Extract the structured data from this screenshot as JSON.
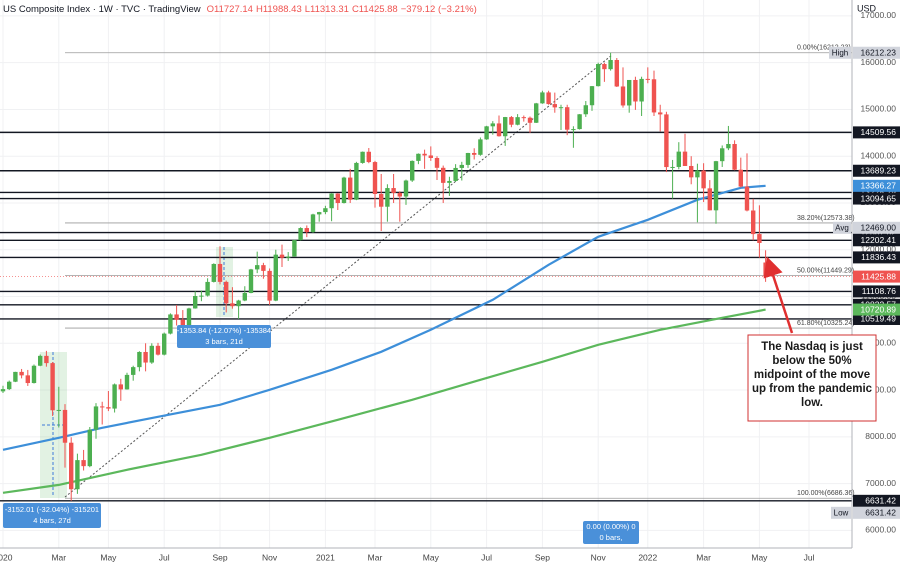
{
  "chart_data": {
    "type": "candlestick",
    "header": {
      "title": "US Composite Index · 1W · TVC · TradingView",
      "open": "O11727.14",
      "high": "H11988.43",
      "low": "L11313.31",
      "close": "C11425.88",
      "change": "−379.12 (−3.21%)"
    },
    "currency": "USD",
    "up_color": "#4caf50",
    "down_color": "#ef5350",
    "level_color": "#131722",
    "tag_gray": "#d1d4dc",
    "ylim": [
      5580,
      17340
    ],
    "yticks": [
      {
        "value": 6000,
        "label": "6000.00"
      },
      {
        "value": 7000,
        "label": "7000.00"
      },
      {
        "value": 8000,
        "label": "8000.00"
      },
      {
        "value": 9000,
        "label": "9000.00"
      },
      {
        "value": 10000,
        "label": "10000.00"
      },
      {
        "value": 11000,
        "label": "11000.00"
      },
      {
        "value": 12000,
        "label": "12000.00"
      },
      {
        "value": 13000,
        "label": "13000.00"
      },
      {
        "value": 14000,
        "label": "14000.00"
      },
      {
        "value": 15000,
        "label": "15000.00"
      },
      {
        "value": 16000,
        "label": "16000.00"
      },
      {
        "value": 17000,
        "label": "17000.00"
      }
    ],
    "grid": true,
    "categories": [
      "2020",
      null,
      null,
      null,
      null,
      null,
      null,
      null,
      null,
      "Mar",
      null,
      null,
      null,
      null,
      null,
      null,
      null,
      "May",
      null,
      null,
      null,
      null,
      null,
      null,
      null,
      null,
      "Jul",
      null,
      null,
      null,
      null,
      null,
      null,
      null,
      null,
      "Sep",
      null,
      null,
      null,
      null,
      null,
      null,
      null,
      "Nov",
      null,
      null,
      null,
      null,
      null,
      null,
      null,
      null,
      "2021",
      null,
      null,
      null,
      null,
      null,
      null,
      null,
      "Mar",
      null,
      null,
      null,
      null,
      null,
      null,
      null,
      null,
      "May",
      null,
      null,
      null,
      null,
      null,
      null,
      null,
      null,
      "Jul",
      null,
      null,
      null,
      null,
      null,
      null,
      null,
      null,
      "Sep",
      null,
      null,
      null,
      null,
      null,
      null,
      null,
      null,
      "Nov",
      null,
      null,
      null,
      null,
      null,
      null,
      null,
      "2022",
      null,
      null,
      null,
      null,
      null,
      null,
      null,
      null,
      "Mar",
      null,
      null,
      null,
      null,
      null,
      null,
      null,
      null,
      "May",
      null,
      null,
      null,
      null,
      null,
      null,
      null,
      "Jul",
      null,
      null,
      null,
      null,
      null,
      null
    ],
    "open": [
      8972,
      9020,
      9178,
      9388,
      9314,
      9150,
      9520,
      9731,
      9576,
      8567,
      8575,
      7874,
      6879,
      7502,
      7373,
      8153,
      8650,
      8634,
      8604,
      9121,
      9014,
      9324,
      9490,
      9814,
      9588,
      9946,
      9757,
      10207,
      10617,
      10503,
      10363,
      10745,
      11011,
      11019,
      11312,
      11696,
      11313,
      10854,
      10793,
      10914,
      11075,
      11580,
      11671,
      11548,
      10912,
      11895,
      11829,
      11855,
      12206,
      12464,
      12378,
      12756,
      12805,
      12888,
      13202,
      12999,
      13543,
      13070,
      13856,
      14095,
      13875,
      13192,
      12920,
      13319,
      13215,
      13138,
      13480,
      13900,
      14052,
      14016,
      13962,
      13752,
      13430,
      13471,
      13749,
      13814,
      14069,
      14030,
      14360,
      14639,
      14701,
      14427,
      14837,
      14673,
      14835,
      14823,
      14715,
      15130,
      15364,
      15115,
      15044,
      15048,
      14567,
      14580,
      14897,
      15090,
      15498,
      15971,
      15861,
      16057,
      15491,
      15085,
      15630,
      15170,
      15653,
      15645,
      14936,
      14894,
      13768,
      13770,
      14098,
      13791,
      13548,
      13694,
      13313,
      12843,
      13894,
      14169,
      14261,
      13711,
      13351,
      12839,
      12335,
      11727.14,
      null,
      null,
      null,
      null,
      null,
      null,
      null,
      null,
      null,
      null,
      null,
      null,
      null
    ],
    "high": [
      9093,
      9203,
      9390,
      9451,
      9430,
      9545,
      9760,
      9838,
      9600,
      9070,
      8700,
      7990,
      7640,
      7720,
      8210,
      8720,
      8750,
      8980,
      9140,
      9240,
      9370,
      9520,
      9830,
      10000,
      10000,
      10010,
      10230,
      10640,
      10820,
      10710,
      10760,
      11110,
      11130,
      11390,
      11710,
      12074,
      11340,
      11200,
      10930,
      11220,
      11590,
      11960,
      11720,
      11600,
      12000,
      12110,
      11950,
      12210,
      12480,
      12520,
      12770,
      12810,
      12940,
      13210,
      13210,
      13560,
      13730,
      13880,
      14100,
      14175,
      13900,
      13620,
      13400,
      13620,
      13250,
      13500,
      13910,
      14060,
      14140,
      14210,
      14000,
      13800,
      13560,
      13830,
      13880,
      14070,
      14170,
      14400,
      14650,
      14750,
      14870,
      14840,
      14860,
      14900,
      14870,
      14850,
      15140,
      15400,
      15400,
      15360,
      15100,
      15100,
      14640,
      14900,
      15180,
      15500,
      16000,
      16000,
      16212.23,
      16100,
      15900,
      15630,
      15700,
      15700,
      15900,
      15830,
      15100,
      14950,
      13920,
      14300,
      14480,
      14000,
      13840,
      13850,
      13490,
      13900,
      14230,
      14647,
      14340,
      13970,
      14060,
      13090,
      12950,
      11988.43,
      null,
      null,
      null,
      null,
      null,
      null,
      null,
      null,
      null,
      null,
      null,
      null,
      null
    ],
    "low": [
      8937,
      9000,
      9170,
      9250,
      9088,
      9140,
      9510,
      9500,
      8446,
      8200,
      7340,
      6631.42,
      6780,
      7280,
      7350,
      7960,
      8263,
      8550,
      8520,
      8770,
      9010,
      9200,
      9400,
      9400,
      9560,
      9740,
      9740,
      10190,
      10380,
      10320,
      10140,
      10740,
      10900,
      11000,
      11300,
      11260,
      10660,
      10740,
      10520,
      10900,
      11070,
      11500,
      11380,
      10820,
      10900,
      11630,
      11760,
      11850,
      12200,
      12270,
      12360,
      12600,
      12760,
      12610,
      12850,
      12990,
      13000,
      13060,
      13840,
      13850,
      12900,
      12400,
      12600,
      13000,
      12600,
      12960,
      13450,
      13830,
      13730,
      13900,
      13490,
      13000,
      13150,
      13450,
      13480,
      13750,
      13930,
      14010,
      14350,
      14460,
      14420,
      14220,
      14620,
      14660,
      14740,
      14500,
      14710,
      15120,
      15100,
      14930,
      14560,
      14450,
      14180,
      14570,
      14840,
      14970,
      15490,
      15590,
      15830,
      15480,
      15040,
      14930,
      14990,
      14860,
      15560,
      14860,
      14530,
      13660,
      13094,
      13720,
      13790,
      13400,
      12587,
      13020,
      12840,
      12555,
      13770,
      14130,
      13700,
      13330,
      12820,
      12200,
      11830,
      11313.31,
      null,
      null,
      null,
      null,
      null,
      null,
      null,
      null,
      null,
      null,
      null,
      null,
      null
    ],
    "close": [
      9020,
      9178,
      9388,
      9314,
      9150,
      9520,
      9731,
      9576,
      8567,
      8575,
      7874,
      6879,
      7502,
      7373,
      8153,
      8650,
      8634,
      8604,
      9121,
      9014,
      9324,
      9490,
      9814,
      9588,
      9946,
      9757,
      10207,
      10617,
      10503,
      10363,
      10745,
      11011,
      11019,
      11312,
      11696,
      11313,
      10854,
      10793,
      10914,
      11075,
      11580,
      11671,
      11548,
      10912,
      11895,
      11829,
      11855,
      12206,
      12464,
      12378,
      12756,
      12805,
      12888,
      13202,
      12999,
      13543,
      13070,
      13856,
      14095,
      13875,
      13192,
      12920,
      13319,
      13215,
      13138,
      13480,
      13900,
      14052,
      14016,
      13962,
      13752,
      13430,
      13471,
      13749,
      13814,
      14069,
      14030,
      14360,
      14639,
      14701,
      14427,
      14837,
      14673,
      14835,
      14823,
      14715,
      15130,
      15364,
      15115,
      15044,
      15048,
      14567,
      14580,
      14897,
      15090,
      15498,
      15971,
      15861,
      16057,
      15491,
      15085,
      15630,
      15170,
      15653,
      15645,
      14936,
      14894,
      13768,
      13770,
      14098,
      13791,
      13548,
      13694,
      13313,
      12843,
      13894,
      14169,
      14261,
      13711,
      13351,
      12839,
      12335,
      12145,
      11425.88,
      null,
      null,
      null,
      null,
      null,
      null,
      null,
      null,
      null,
      null,
      null,
      null,
      null
    ],
    "moving_averages": [
      {
        "color": "#3d8fd9",
        "x": [
          0,
          9,
          16,
          25,
          35,
          43,
          53,
          61,
          69,
          79,
          88,
          96,
          104,
          112,
          119,
          123
        ],
        "values": [
          7722,
          7979,
          8193,
          8427,
          8684,
          9005,
          9433,
          9818,
          10288,
          10930,
          11678,
          12277,
          12641,
          13068,
          13325,
          13366.27
        ]
      },
      {
        "color": "#5cb85c",
        "x": [
          0,
          9,
          20,
          32,
          43,
          54,
          66,
          77,
          87,
          96,
          106,
          116,
          123
        ],
        "values": [
          6802,
          6973,
          7294,
          7615,
          7979,
          8364,
          8791,
          9219,
          9604,
          9967,
          10288,
          10545,
          10720.89
        ]
      }
    ],
    "levels": [
      14509.56,
      13689.23,
      13225.29,
      13094.65,
      12367.02,
      12202.41,
      11836.43,
      11108.76,
      10822.57,
      10519.49,
      6631.42
    ],
    "high_tag": {
      "value": 16212.23,
      "text": "High"
    },
    "low_tag": {
      "value": 6631.42,
      "text": "Low"
    },
    "avg_tag": {
      "value": 12469,
      "label": "12469.00",
      "text": "Avg"
    },
    "last_price": 11425.88,
    "fib_levels": [
      {
        "value": 16212.23,
        "label": "0.00%(16212.23)"
      },
      {
        "value": 12573.38,
        "label": "38.20%(12573.38)"
      },
      {
        "value": 11449.29,
        "label": "50.00%(11449.29)"
      },
      {
        "value": 10325.24,
        "label": "61.80%(10325.24)"
      },
      {
        "value": 6686.36,
        "label": "100.00%(6686.36)"
      }
    ],
    "measures": [
      {
        "lines": [
          "-3152.01 (-32.04%) -315201",
          "4 bars, 27d"
        ]
      },
      {
        "lines": [
          "-1353.84 (-12.07%) -135384",
          "3 bars, 21d"
        ]
      },
      {
        "lines": [
          "0.00 (0.00%) 0",
          "0 bars,"
        ]
      }
    ],
    "annotation": "The Nasdaq is just below the 50% midpoint of the move up from the pandemic low."
  }
}
